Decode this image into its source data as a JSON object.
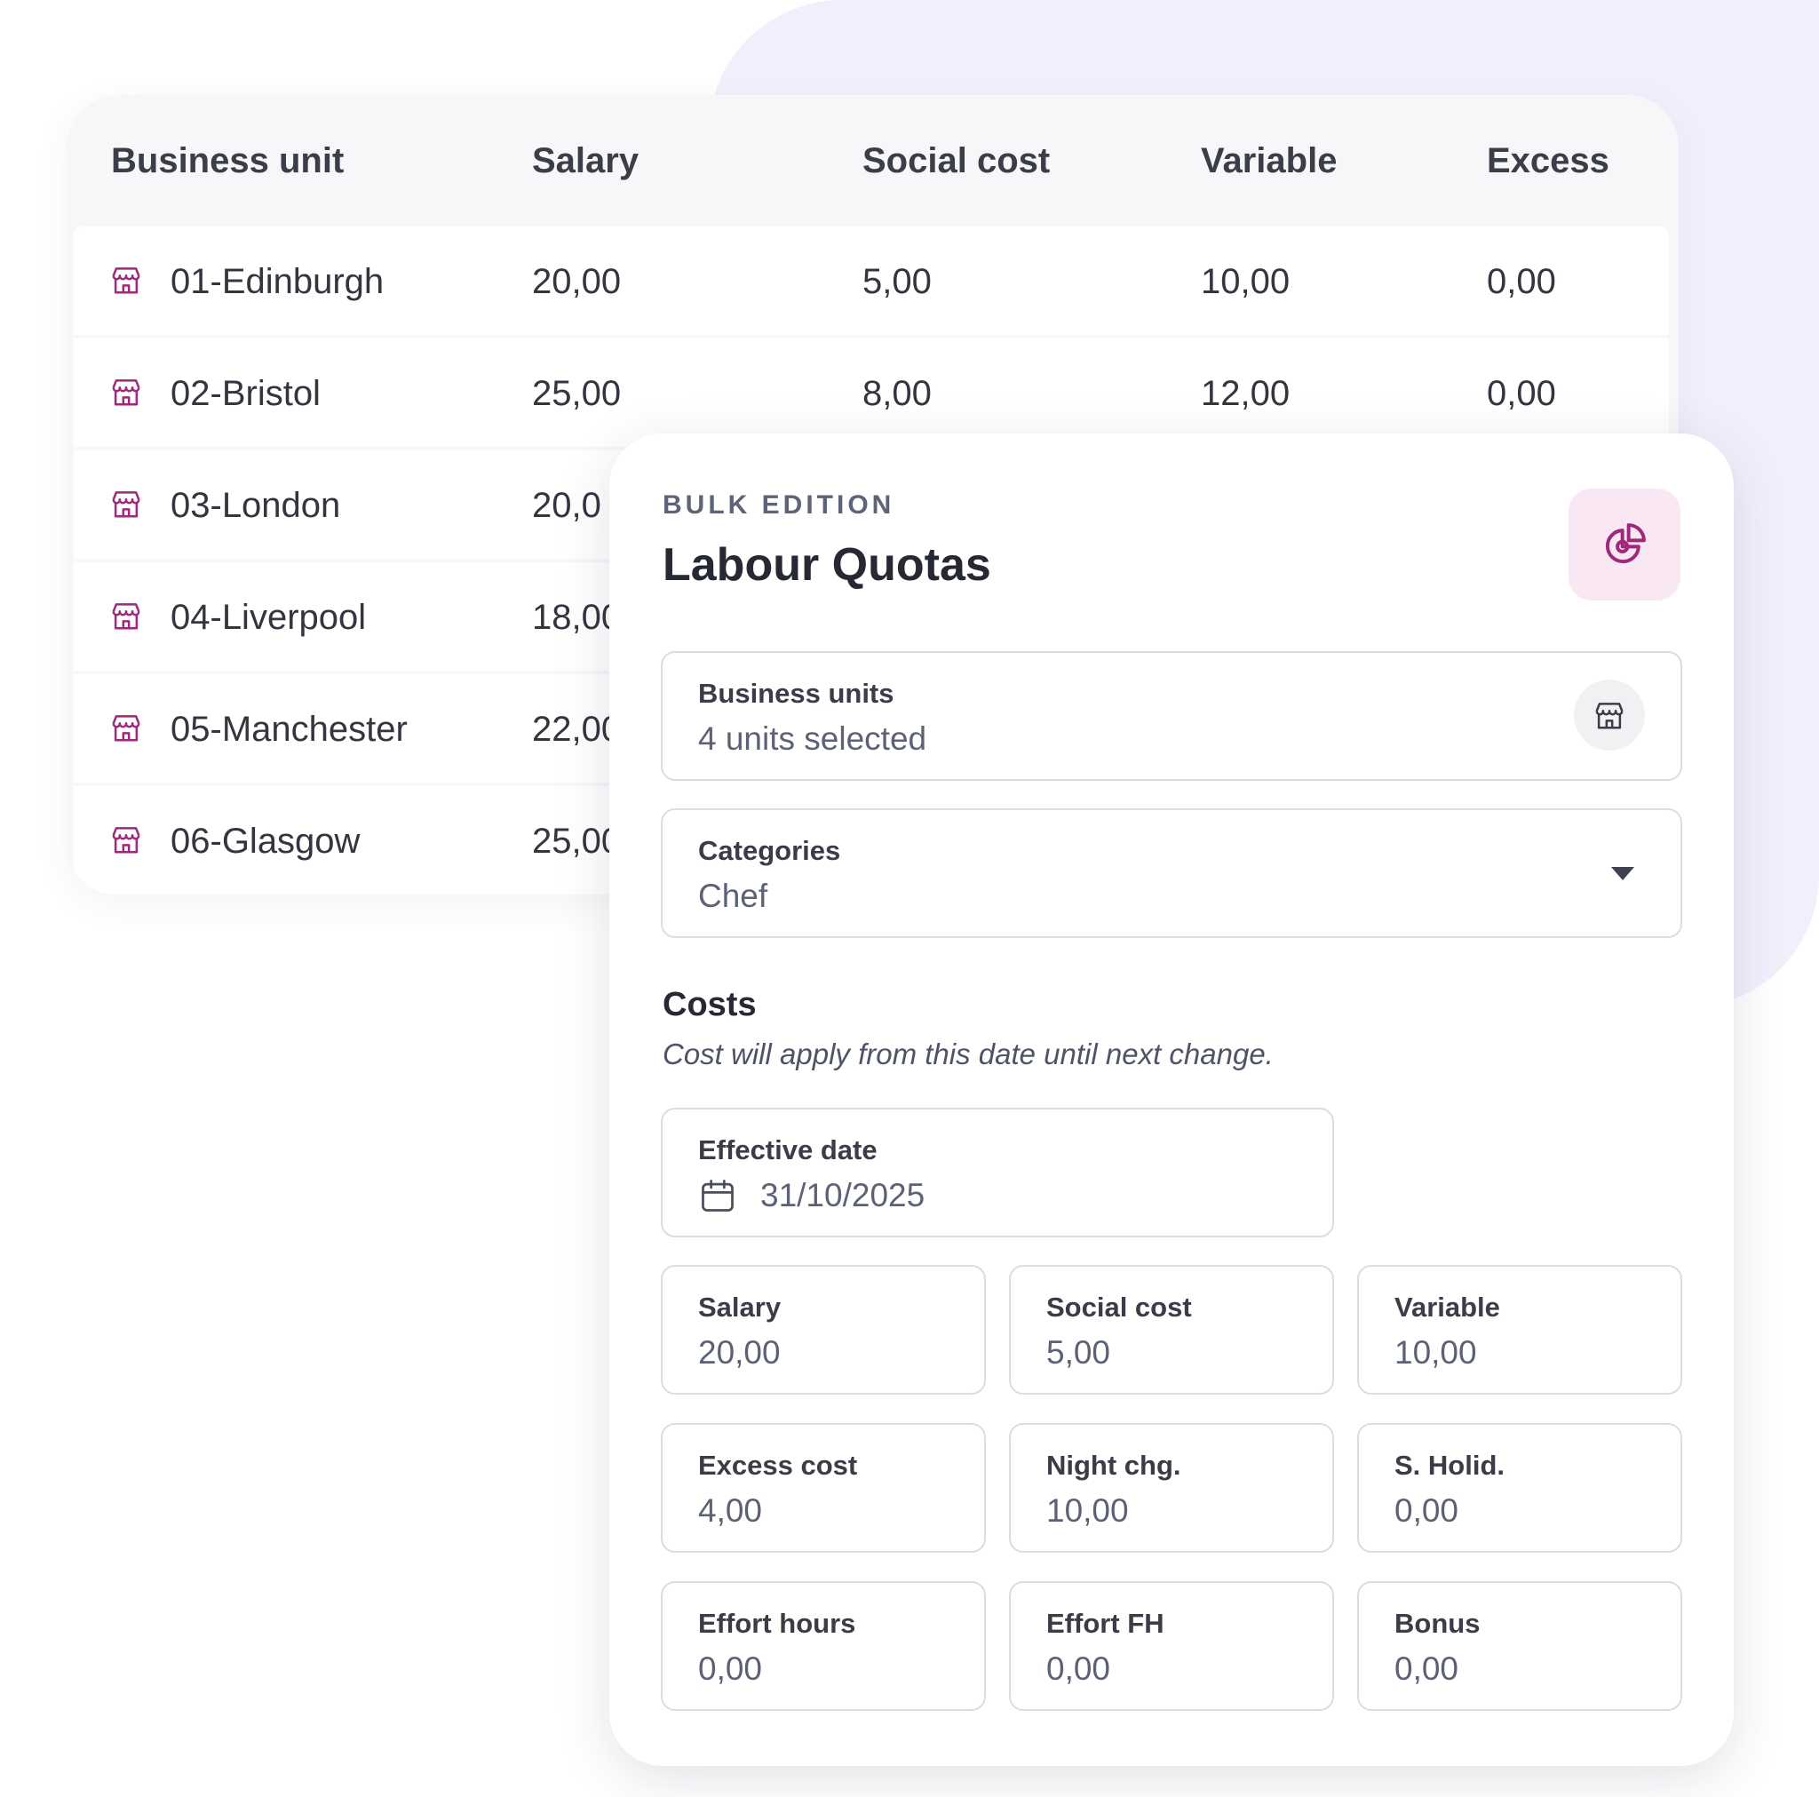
{
  "table": {
    "columns": [
      "Business unit",
      "Salary",
      "Social cost",
      "Variable",
      "Excess"
    ],
    "rows": [
      {
        "unit": "01-Edinburgh",
        "salary": "20,00",
        "social": "5,00",
        "variable": "10,00",
        "excess": "0,00"
      },
      {
        "unit": "02-Bristol",
        "salary": "25,00",
        "social": "8,00",
        "variable": "12,00",
        "excess": "0,00"
      },
      {
        "unit": "03-London",
        "salary": "20,0"
      },
      {
        "unit": "04-Liverpool",
        "salary": "18,00"
      },
      {
        "unit": "05-Manchester",
        "salary": "22,00"
      },
      {
        "unit": "06-Glasgow",
        "salary": "25,00"
      }
    ]
  },
  "panel": {
    "eyebrow": "BULK EDITION",
    "title": "Labour Quotas",
    "action_icon": "pie-chart-icon",
    "business_units": {
      "label": "Business units",
      "value": "4 units selected",
      "icon": "store-icon"
    },
    "categories": {
      "label": "Categories",
      "value": "Chef",
      "icon": "chevron-down-icon"
    },
    "costs": {
      "title": "Costs",
      "subtitle": "Cost will apply from this date until next change.",
      "effective_date": {
        "label": "Effective date",
        "value": "31/10/2025",
        "icon": "calendar-icon"
      },
      "fields": [
        {
          "label": "Salary",
          "value": "20,00"
        },
        {
          "label": "Social cost",
          "value": "5,00"
        },
        {
          "label": "Variable",
          "value": "10,00"
        },
        {
          "label": "Excess cost",
          "value": "4,00"
        },
        {
          "label": "Night chg.",
          "value": "10,00"
        },
        {
          "label": "S. Holid.",
          "value": "0,00"
        },
        {
          "label": "Effort hours",
          "value": "0,00"
        },
        {
          "label": "Effort FH",
          "value": "0,00"
        },
        {
          "label": "Bonus",
          "value": "0,00"
        }
      ]
    }
  },
  "colors": {
    "accent": "#a0287a",
    "accent_bg": "#f9e8f3",
    "backdrop": "#f2effd",
    "table_header_bg": "#f7f7f9"
  }
}
